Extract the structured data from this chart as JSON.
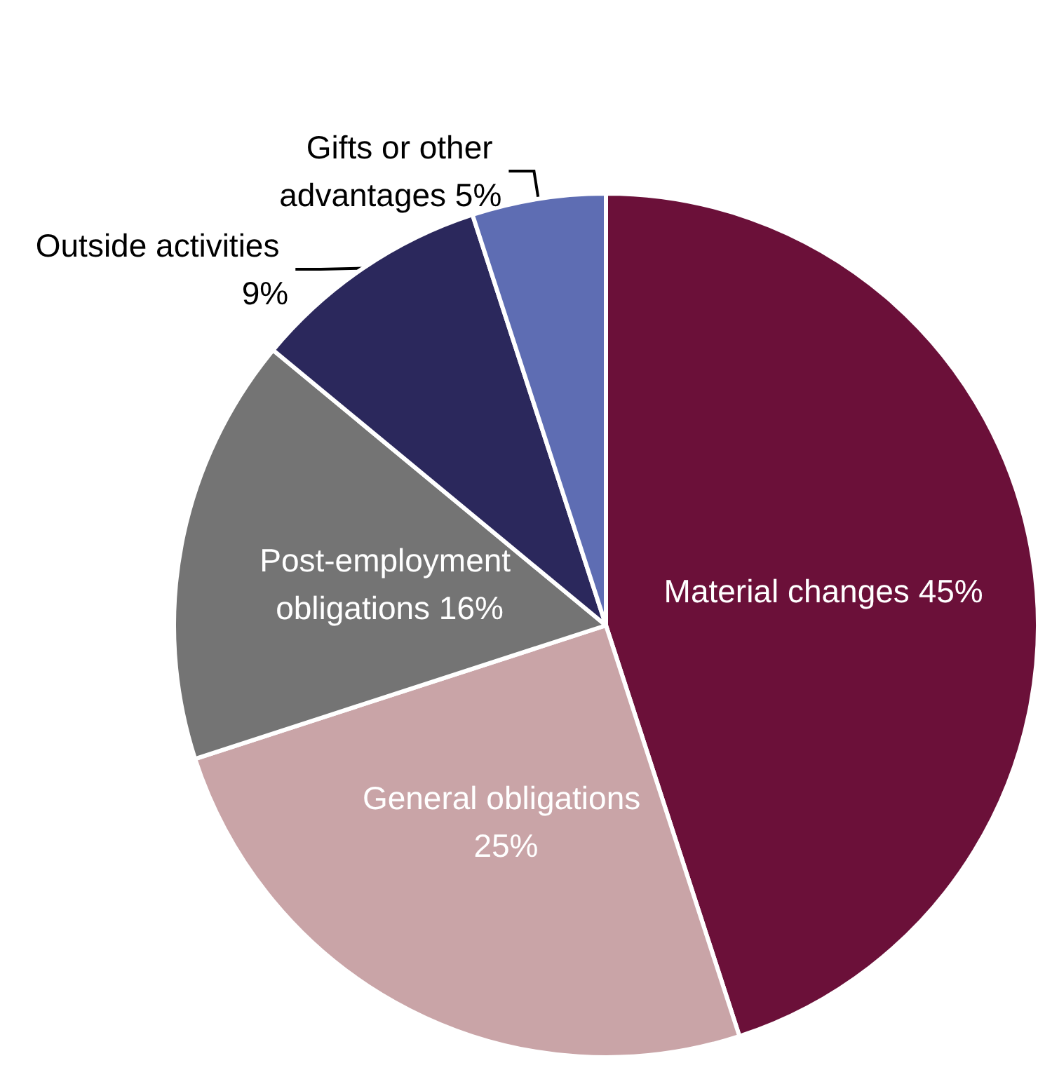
{
  "chart_data": {
    "type": "pie",
    "categories": [
      "Material changes",
      "General obligations",
      "Post-employment obligations",
      "Outside activities",
      "Gifts or other advantages"
    ],
    "values": [
      45,
      25,
      16,
      9,
      5
    ],
    "colors": [
      "#6b1039",
      "#c9a4a7",
      "#747474",
      "#2b285c",
      "#5e6db3"
    ],
    "value_labels": [
      "45%",
      "25%",
      "16%",
      "9%",
      "5%"
    ],
    "legend": false
  }
}
